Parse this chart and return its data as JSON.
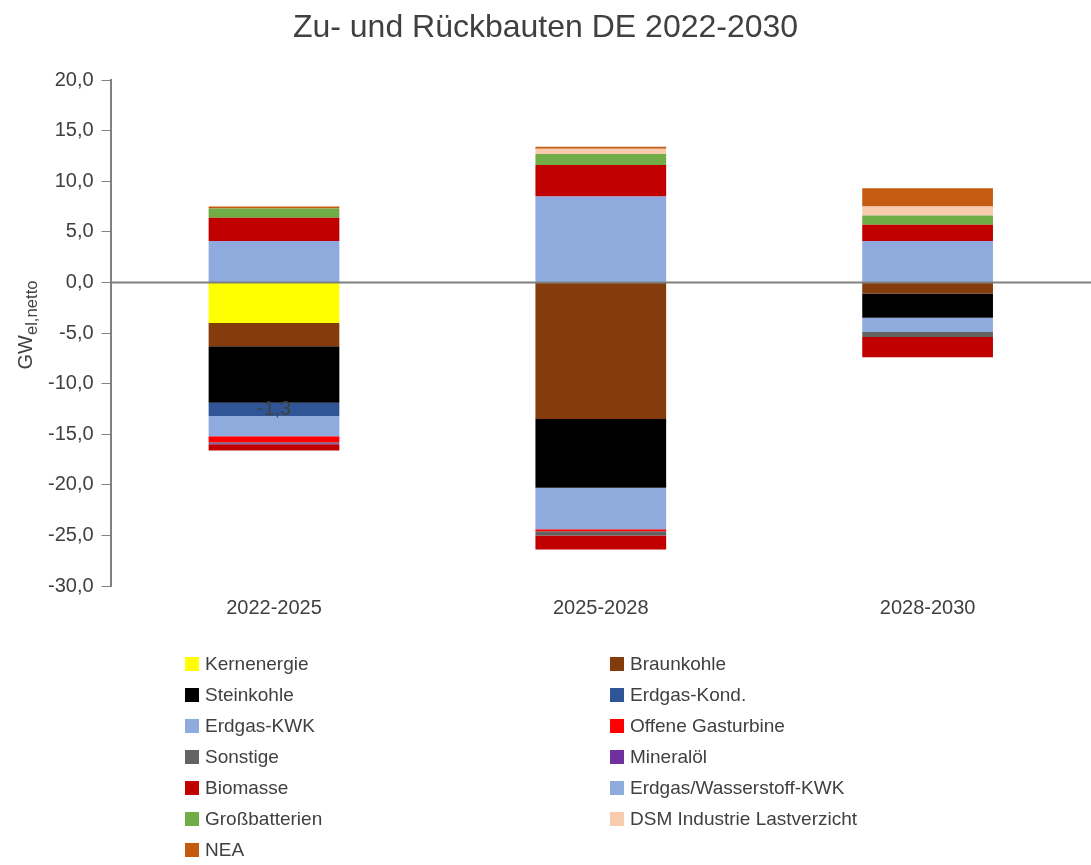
{
  "chart_data": {
    "type": "bar",
    "title": "Zu- und Rückbauten DE 2022-2030",
    "ylabel": "GW$_{el,netto}$",
    "categories": [
      "2022-2025",
      "2025-2028",
      "2028-2030"
    ],
    "stacked": true,
    "ylim": [
      -30,
      20
    ],
    "yticks": [
      {
        "value": -30,
        "label": "-30,0"
      },
      {
        "value": -25,
        "label": "-25,0"
      },
      {
        "value": -20,
        "label": "-20,0"
      },
      {
        "value": -15,
        "label": "-15,0"
      },
      {
        "value": -10,
        "label": "-10,0"
      },
      {
        "value": -5,
        "label": "-5,0"
      },
      {
        "value": 0,
        "label": "0,0"
      },
      {
        "value": 5,
        "label": "5,0"
      },
      {
        "value": 10,
        "label": "10,0"
      },
      {
        "value": 15,
        "label": "15,0"
      },
      {
        "value": 20,
        "label": "20,0"
      }
    ],
    "grid": false,
    "legend": "bottom",
    "ref_lines": [
      {
        "axis": "y",
        "value": 0,
        "color": "#808080"
      }
    ],
    "series": [
      {
        "name": "Kernenergie",
        "color": "#ffff00",
        "values": [
          -4.0,
          0,
          0
        ]
      },
      {
        "name": "Braunkohle",
        "color": "#843c0c",
        "values": [
          -2.3,
          -13.5,
          -1.1
        ]
      },
      {
        "name": "Steinkohle",
        "color": "#000000",
        "values": [
          -5.6,
          -6.8,
          -2.4
        ]
      },
      {
        "name": "Erdgas-Kond.",
        "color": "#2f5597",
        "values": [
          -1.3,
          0,
          0
        ],
        "value_labels": [
          "-1,3",
          null,
          null
        ]
      },
      {
        "name": "Erdgas-KWK",
        "color": "#8faadc",
        "values": [
          -2.0,
          -4.1,
          -1.4
        ]
      },
      {
        "name": "Offene Gasturbine",
        "color": "#ff0000",
        "values": [
          -0.6,
          -0.2,
          0
        ]
      },
      {
        "name": "Sonstige",
        "color": "#636363",
        "values": [
          -0.1,
          -0.4,
          -0.5
        ]
      },
      {
        "name": "Mineralöl",
        "color": "#7030a0",
        "values": [
          -0.1,
          0,
          0
        ]
      },
      {
        "name": "Biomasse",
        "color": "#c00000",
        "values": [
          -0.6,
          -1.4,
          -2.0
        ]
      },
      {
        "name": "Erdgas/Wasserstoff-KWK",
        "color": "#8faadc",
        "values": [
          4.1,
          8.5,
          4.1
        ]
      },
      {
        "color": "#c00000",
        "values": [
          2.3,
          3.1,
          1.6
        ]
      },
      {
        "name": "Großbatterien",
        "color": "#70ad47",
        "values": [
          0.9,
          1.1,
          0.9
        ]
      },
      {
        "name": "DSM Industrie Lastverzicht",
        "color": "#f8cbad",
        "values": [
          0,
          0.5,
          0.9
        ]
      },
      {
        "name": "NEA",
        "color": "#c55a11",
        "values": [
          0.2,
          0.2,
          1.8
        ]
      }
    ]
  }
}
